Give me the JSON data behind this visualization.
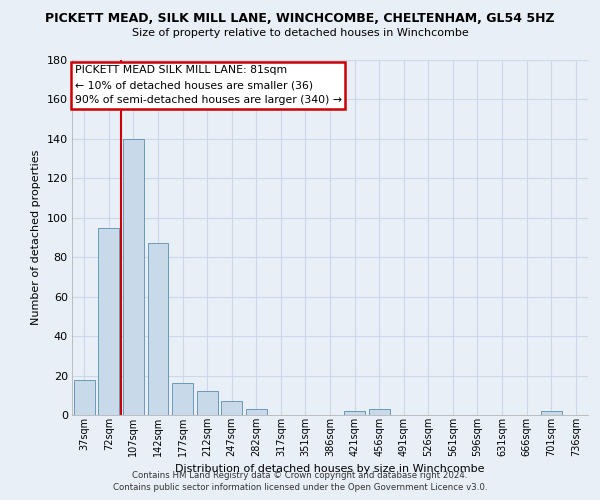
{
  "title": "PICKETT MEAD, SILK MILL LANE, WINCHCOMBE, CHELTENHAM, GL54 5HZ",
  "subtitle": "Size of property relative to detached houses in Winchcombe",
  "xlabel": "Distribution of detached houses by size in Winchcombe",
  "ylabel": "Number of detached properties",
  "bar_color": "#c8daea",
  "bar_edge_color": "#6a9ab8",
  "bg_color": "#e8eff7",
  "grid_color": "#ccd8e8",
  "categories": [
    "37sqm",
    "72sqm",
    "107sqm",
    "142sqm",
    "177sqm",
    "212sqm",
    "247sqm",
    "282sqm",
    "317sqm",
    "351sqm",
    "386sqm",
    "421sqm",
    "456sqm",
    "491sqm",
    "526sqm",
    "561sqm",
    "596sqm",
    "631sqm",
    "666sqm",
    "701sqm",
    "736sqm"
  ],
  "values": [
    18,
    95,
    140,
    87,
    16,
    12,
    7,
    3,
    0,
    0,
    0,
    2,
    3,
    0,
    0,
    0,
    0,
    0,
    0,
    2,
    0
  ],
  "ylim": [
    0,
    180
  ],
  "yticks": [
    0,
    20,
    40,
    60,
    80,
    100,
    120,
    140,
    160,
    180
  ],
  "property_line_color": "#cc0000",
  "property_line_index": 1.5,
  "annotation_title": "PICKETT MEAD SILK MILL LANE: 81sqm",
  "annotation_line1": "← 10% of detached houses are smaller (36)",
  "annotation_line2": "90% of semi-detached houses are larger (340) →",
  "annotation_box_color": "#ffffff",
  "annotation_box_edge": "#cc0000",
  "footer_line1": "Contains HM Land Registry data © Crown copyright and database right 2024.",
  "footer_line2": "Contains public sector information licensed under the Open Government Licence v3.0."
}
